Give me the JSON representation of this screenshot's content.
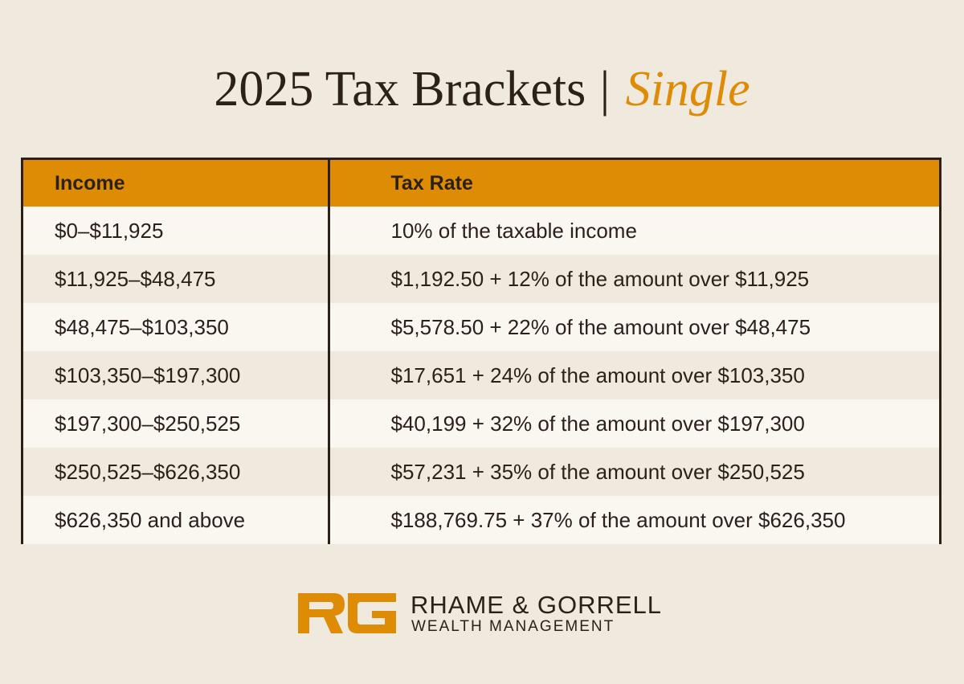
{
  "title": {
    "main": "2025 Tax Brackets",
    "separator": "|",
    "accent": "Single"
  },
  "table": {
    "headers": [
      "Income",
      "Tax Rate"
    ],
    "rows": [
      [
        "$0–$11,925",
        "10% of the taxable income"
      ],
      [
        "$11,925–$48,475",
        "$1,192.50 + 12% of the amount over $11,925"
      ],
      [
        "$48,475–$103,350",
        "$5,578.50 + 22% of the amount over $48,475"
      ],
      [
        "$103,350–$197,300",
        "$17,651 + 24% of the amount over $103,350"
      ],
      [
        "$197,300–$250,525",
        "$40,199 + 32% of the amount over $197,300"
      ],
      [
        "$250,525–$626,350",
        "$57,231 + 35% of the amount over $250,525"
      ],
      [
        "$626,350 and above",
        "$188,769.75 + 37% of the amount over $626,350"
      ]
    ]
  },
  "brand": {
    "logo_text": "RG",
    "logo_icon": "rg-monogram-icon",
    "name": "RHAME & GORRELL",
    "subtitle": "WEALTH MANAGEMENT"
  },
  "colors": {
    "accent": "#de8b06",
    "text": "#2b2119",
    "background": "#f0e9dd",
    "row_light": "#faf7f0"
  }
}
